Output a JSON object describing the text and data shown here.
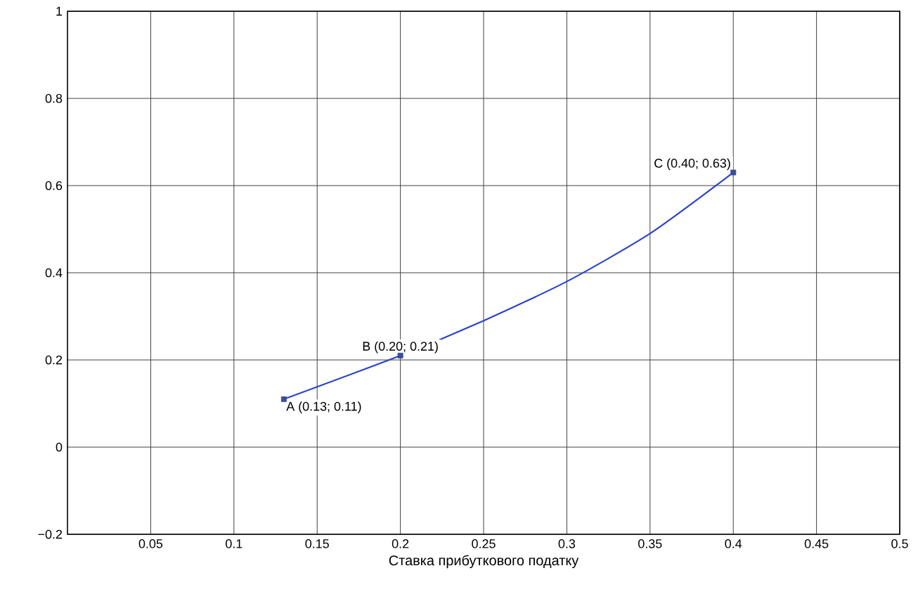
{
  "chart_data": {
    "type": "line",
    "xlabel": "Ставка прибуткового податку",
    "xlim": [
      0,
      0.5
    ],
    "xticks": [
      0.05,
      0.1,
      0.15,
      0.2,
      0.25,
      0.3,
      0.35,
      0.4,
      0.45,
      0.5
    ],
    "ylim": [
      -0.2,
      1
    ],
    "yticks": [
      {
        "value": -0.2,
        "label": "−0.2"
      },
      0,
      0.2,
      0.4,
      0.6,
      0.8,
      1
    ],
    "grid": true,
    "series": [
      {
        "color": "#2b44c8",
        "marker": "none",
        "x": [
          0.13,
          0.2,
          0.25,
          0.3,
          0.35,
          0.4
        ],
        "values": [
          0.11,
          0.21,
          0.29,
          0.38,
          0.49,
          0.63
        ]
      },
      {
        "type": "scatter",
        "color": "#3a4f9a",
        "marker": "square",
        "x": [
          0.13,
          0.2,
          0.4
        ],
        "values": [
          0.11,
          0.21,
          0.63
        ]
      }
    ],
    "annotations": [
      {
        "text": "A (0.13; 0.11)",
        "x": 0.13,
        "y": 0.11
      },
      {
        "text": "B (0.20; 0.21)",
        "x": 0.2,
        "y": 0.21
      },
      {
        "text": "C (0.40; 0.63)",
        "x": 0.4,
        "y": 0.63
      }
    ]
  }
}
